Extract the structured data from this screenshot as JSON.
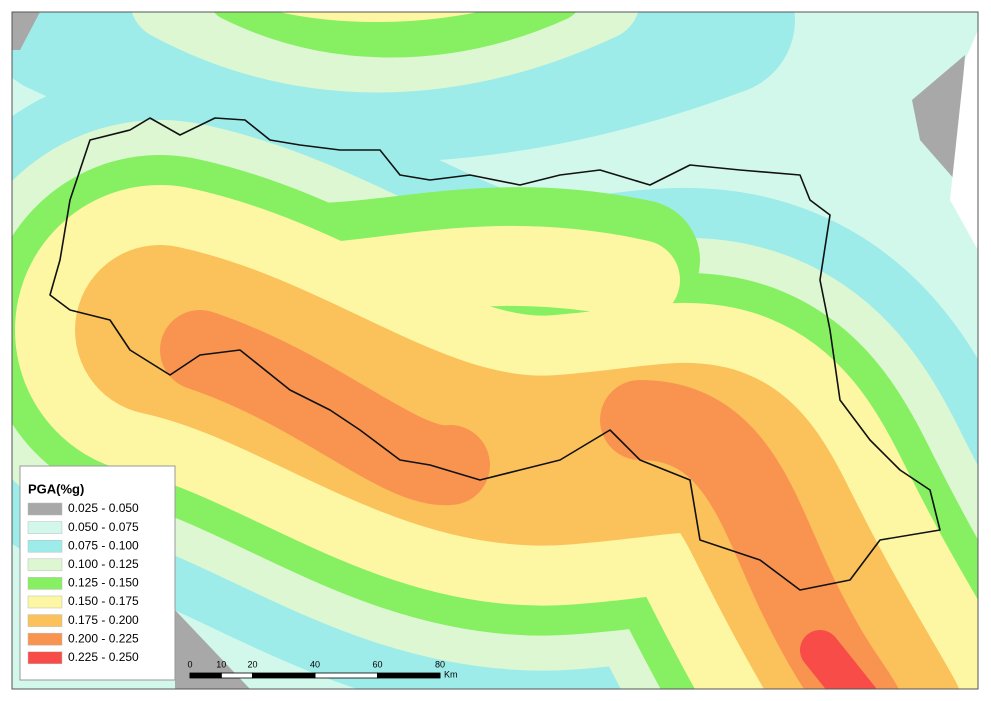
{
  "legend": {
    "title": "PGA(%g)",
    "items": [
      {
        "label": "0.025 - 0.050",
        "color": "#a8a8a8"
      },
      {
        "label": "0.050 - 0.075",
        "color": "#d2f8ec"
      },
      {
        "label": "0.075 - 0.100",
        "color": "#9decea"
      },
      {
        "label": "0.100 - 0.125",
        "color": "#dcf7d2"
      },
      {
        "label": "0.125 - 0.150",
        "color": "#86f062"
      },
      {
        "label": "0.150 - 0.175",
        "color": "#fdf7a4"
      },
      {
        "label": "0.175 - 0.200",
        "color": "#fbc25c"
      },
      {
        "label": "0.200 - 0.225",
        "color": "#f99450"
      },
      {
        "label": "0.225 - 0.250",
        "color": "#f84c48"
      }
    ]
  },
  "scale_bar": {
    "ticks": [
      0,
      10,
      20,
      40,
      60,
      80
    ],
    "unit": "Km"
  }
}
